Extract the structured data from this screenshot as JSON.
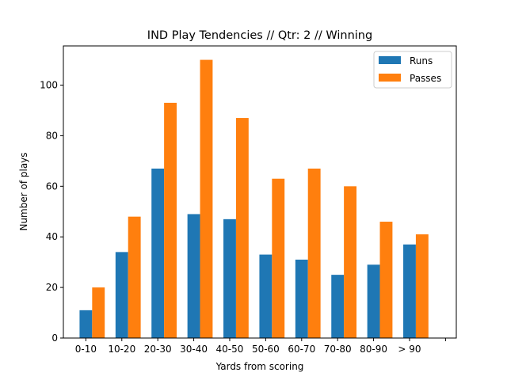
{
  "chart_data": {
    "type": "bar",
    "title": "IND Play Tendencies // Qtr: 2 // Winning",
    "xlabel": "Yards from scoring",
    "ylabel": "Number of plays",
    "categories": [
      "0-10",
      "10-20",
      "20-30",
      "30-40",
      "40-50",
      "50-60",
      "60-70",
      "70-80",
      "80-90",
      "> 90"
    ],
    "series": [
      {
        "name": "Runs",
        "color": "#1f77b4",
        "values": [
          11,
          34,
          67,
          49,
          47,
          33,
          31,
          25,
          29,
          37
        ]
      },
      {
        "name": "Passes",
        "color": "#ff7f0e",
        "values": [
          20,
          48,
          93,
          110,
          87,
          63,
          67,
          60,
          46,
          41
        ]
      }
    ],
    "ylim": [
      0,
      115.5
    ],
    "yticks": [
      0,
      20,
      40,
      60,
      80,
      100
    ],
    "grid": false,
    "legend_position": "top-right"
  }
}
